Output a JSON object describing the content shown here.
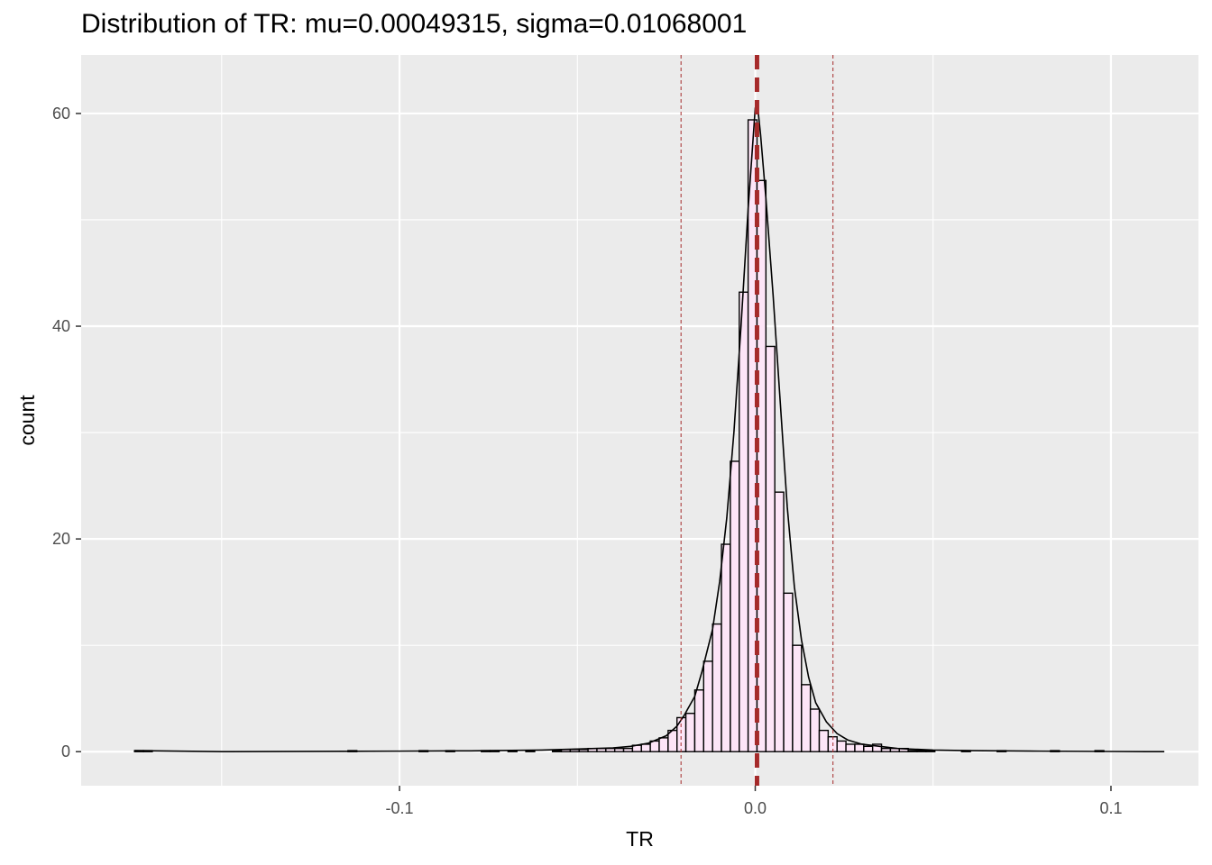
{
  "chart_data": {
    "type": "bar",
    "title": "Distribution of TR: mu=0.00049315, sigma=0.01068001",
    "xlabel": "TR",
    "ylabel": "count",
    "xlim": [
      -0.1895,
      0.1246
    ],
    "ylim": [
      -3.2,
      65.5
    ],
    "x_ticks": [
      {
        "value": -0.1,
        "label": "-0.1"
      },
      {
        "value": 0.0,
        "label": "0.0"
      },
      {
        "value": 0.1,
        "label": "0.1"
      }
    ],
    "y_ticks": [
      {
        "value": 0,
        "label": "0"
      },
      {
        "value": 20,
        "label": "20"
      },
      {
        "value": 40,
        "label": "40"
      },
      {
        "value": 60,
        "label": "60"
      }
    ],
    "grid": true,
    "bin_width": 0.0025,
    "bins": [
      {
        "x0": -0.1745,
        "count": 0.1
      },
      {
        "x0": -0.172,
        "count": 0.1
      },
      {
        "x0": -0.1145,
        "count": 0.1
      },
      {
        "x0": -0.0945,
        "count": 0.1
      },
      {
        "x0": -0.087,
        "count": 0.1
      },
      {
        "x0": -0.077,
        "count": 0.1
      },
      {
        "x0": -0.0745,
        "count": 0.1
      },
      {
        "x0": -0.0695,
        "count": 0.1
      },
      {
        "x0": -0.0645,
        "count": 0.1
      },
      {
        "x0": -0.057,
        "count": 0.1
      },
      {
        "x0": -0.0545,
        "count": 0.2
      },
      {
        "x0": -0.052,
        "count": 0.2
      },
      {
        "x0": -0.0495,
        "count": 0.2
      },
      {
        "x0": -0.047,
        "count": 0.3
      },
      {
        "x0": -0.0445,
        "count": 0.3
      },
      {
        "x0": -0.042,
        "count": 0.3
      },
      {
        "x0": -0.0395,
        "count": 0.3
      },
      {
        "x0": -0.037,
        "count": 0.3
      },
      {
        "x0": -0.0345,
        "count": 0.6
      },
      {
        "x0": -0.032,
        "count": 0.7
      },
      {
        "x0": -0.0295,
        "count": 1.0
      },
      {
        "x0": -0.027,
        "count": 1.3
      },
      {
        "x0": -0.0245,
        "count": 2.0
      },
      {
        "x0": -0.022,
        "count": 3.2
      },
      {
        "x0": -0.0195,
        "count": 3.6
      },
      {
        "x0": -0.017,
        "count": 5.8
      },
      {
        "x0": -0.0145,
        "count": 8.5
      },
      {
        "x0": -0.012,
        "count": 12.0
      },
      {
        "x0": -0.0095,
        "count": 19.5
      },
      {
        "x0": -0.007,
        "count": 27.3
      },
      {
        "x0": -0.0045,
        "count": 43.2
      },
      {
        "x0": -0.002,
        "count": 59.4
      },
      {
        "x0": 0.0005,
        "count": 53.7
      },
      {
        "x0": 0.003,
        "count": 38.1
      },
      {
        "x0": 0.0055,
        "count": 24.4
      },
      {
        "x0": 0.008,
        "count": 14.9
      },
      {
        "x0": 0.0105,
        "count": 10.0
      },
      {
        "x0": 0.013,
        "count": 6.3
      },
      {
        "x0": 0.0155,
        "count": 4.0
      },
      {
        "x0": 0.018,
        "count": 2.0
      },
      {
        "x0": 0.0205,
        "count": 1.4
      },
      {
        "x0": 0.023,
        "count": 1.0
      },
      {
        "x0": 0.0255,
        "count": 0.7
      },
      {
        "x0": 0.028,
        "count": 0.7
      },
      {
        "x0": 0.0305,
        "count": 0.5
      },
      {
        "x0": 0.033,
        "count": 0.7
      },
      {
        "x0": 0.0355,
        "count": 0.3
      },
      {
        "x0": 0.038,
        "count": 0.3
      },
      {
        "x0": 0.0405,
        "count": 0.3
      },
      {
        "x0": 0.043,
        "count": 0.1
      },
      {
        "x0": 0.0455,
        "count": 0.1
      },
      {
        "x0": 0.048,
        "count": 0.1
      },
      {
        "x0": 0.058,
        "count": 0.1
      },
      {
        "x0": 0.068,
        "count": 0.1
      },
      {
        "x0": 0.083,
        "count": 0.1
      },
      {
        "x0": 0.0955,
        "count": 0.1
      }
    ],
    "density_line": [
      [
        -0.1745,
        0.1
      ],
      [
        -0.15,
        0.0
      ],
      [
        -0.1,
        0.05
      ],
      [
        -0.08,
        0.08
      ],
      [
        -0.06,
        0.15
      ],
      [
        -0.05,
        0.25
      ],
      [
        -0.04,
        0.35
      ],
      [
        -0.035,
        0.5
      ],
      [
        -0.03,
        0.8
      ],
      [
        -0.025,
        1.5
      ],
      [
        -0.022,
        2.4
      ],
      [
        -0.02,
        3.4
      ],
      [
        -0.017,
        5.2
      ],
      [
        -0.015,
        7.5
      ],
      [
        -0.012,
        11.5
      ],
      [
        -0.01,
        16.0
      ],
      [
        -0.008,
        22.0
      ],
      [
        -0.006,
        30.0
      ],
      [
        -0.004,
        40.0
      ],
      [
        -0.002,
        51.0
      ],
      [
        0.0,
        60.5
      ],
      [
        0.0005,
        61.2
      ],
      [
        0.0015,
        58.0
      ],
      [
        0.003,
        52.0
      ],
      [
        0.005,
        43.0
      ],
      [
        0.007,
        33.0
      ],
      [
        0.009,
        23.0
      ],
      [
        0.011,
        15.5
      ],
      [
        0.013,
        10.5
      ],
      [
        0.015,
        7.0
      ],
      [
        0.017,
        4.6
      ],
      [
        0.02,
        2.8
      ],
      [
        0.023,
        1.7
      ],
      [
        0.026,
        1.1
      ],
      [
        0.03,
        0.7
      ],
      [
        0.035,
        0.5
      ],
      [
        0.04,
        0.3
      ],
      [
        0.05,
        0.15
      ],
      [
        0.06,
        0.1
      ],
      [
        0.08,
        0.05
      ],
      [
        0.1,
        0.02
      ],
      [
        0.115,
        0.0
      ]
    ],
    "reference_lines": {
      "mean": 0.00049315,
      "lower": -0.02086687,
      "upper": 0.02185317
    },
    "colors": {
      "panel_background": "#ebebeb",
      "grid": "#ffffff",
      "bar_fill": "#fde5f7",
      "bar_outline": "#000000",
      "density_line": "#000000",
      "mean_line": "#a52a2a",
      "sigma_lines": "#a52a2a"
    }
  }
}
